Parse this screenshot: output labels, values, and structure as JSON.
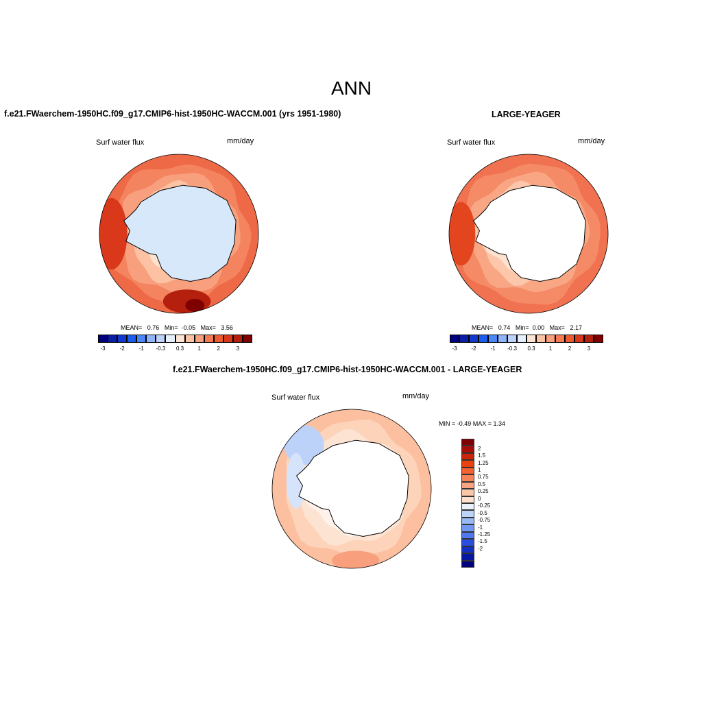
{
  "page": {
    "title": "ANN",
    "case_label": "f.e21.FWaerchem-1950HC.f09_g17.CMIP6-hist-1950HC-WACCM.001 (yrs 1951-1980)",
    "obs_label": "LARGE-YEAGER",
    "diff_label": "f.e21.FWaerchem-1950HC.f09_g17.CMIP6-hist-1950HC-WACCM.001 - LARGE-YEAGER"
  },
  "panels": [
    {
      "id": "case",
      "variable": "Surf water flux",
      "units": "mm/day",
      "stats": {
        "mean_label": "MEAN=",
        "mean": "0.76",
        "min_label": "Min=",
        "min": "-0.05",
        "max_label": "Max=",
        "max": "3.56"
      }
    },
    {
      "id": "obs",
      "variable": "Surf water flux",
      "units": "mm/day",
      "stats": {
        "mean_label": "MEAN=",
        "mean": "0.74",
        "min_label": "Min=",
        "min": "0.00",
        "max_label": "Max=",
        "max": "2.17"
      }
    },
    {
      "id": "diff",
      "variable": "Surf water flux",
      "units": "mm/day",
      "stats_text": "MIN =  -0.49 MAX =   1.34"
    }
  ],
  "horizontal_colorbar": {
    "colors": [
      "#00007f",
      "#0a1ea6",
      "#1238cc",
      "#1c5cf0",
      "#4a86f5",
      "#8fb4f7",
      "#bcd2f9",
      "#e6f0fd",
      "#fde4d2",
      "#fbc3a3",
      "#f8a07c",
      "#f47a53",
      "#ec5a31",
      "#d9381a",
      "#b51f0d",
      "#7f0000"
    ],
    "tick_labels": [
      "-3",
      "-2",
      "-1",
      "-0.3",
      "0.3",
      "1",
      "2",
      "3"
    ]
  },
  "vertical_colorbar": {
    "colors": [
      "#7f0000",
      "#a80d05",
      "#cc2408",
      "#e8400f",
      "#f2612f",
      "#f68257",
      "#f9a381",
      "#fcc6a8",
      "#fee2cd",
      "#e9f1fc",
      "#bdd4f8",
      "#97b9f6",
      "#7299f2",
      "#4f78ee",
      "#2a4fe0",
      "#1430c2",
      "#0718a0",
      "#00007f"
    ],
    "tick_labels": [
      "2",
      "1.5",
      "1.25",
      "1",
      "0.75",
      "0.5",
      "0.25",
      "0",
      "-0.25",
      "-0.5",
      "-0.75",
      "-1",
      "-1.25",
      "-1.5",
      "-2"
    ]
  }
}
